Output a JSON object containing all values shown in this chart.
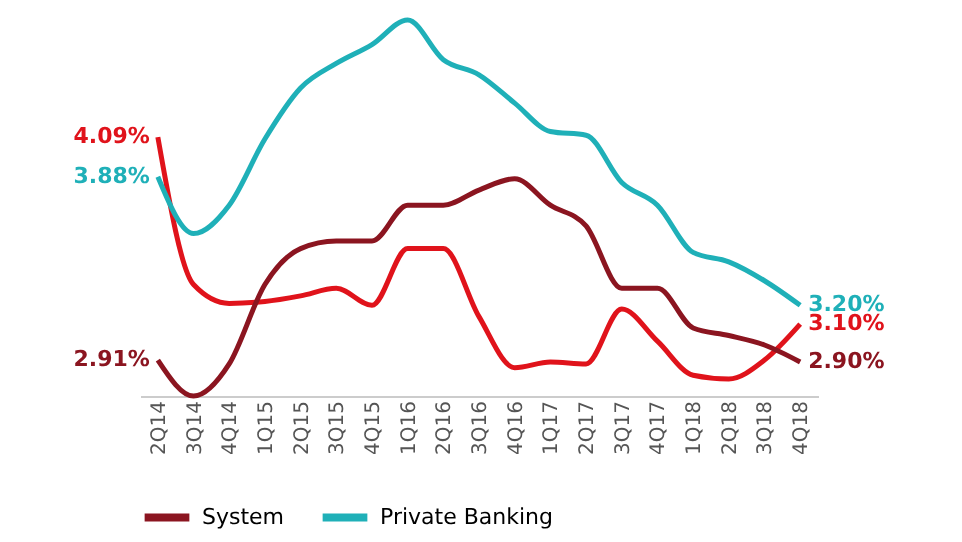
{
  "chart_data": {
    "type": "line",
    "categories": [
      "2Q14",
      "3Q14",
      "4Q14",
      "1Q15",
      "2Q15",
      "3Q15",
      "4Q15",
      "1Q16",
      "2Q16",
      "3Q16",
      "4Q16",
      "1Q17",
      "2Q17",
      "3Q17",
      "4Q17",
      "1Q18",
      "2Q18",
      "3Q18",
      "4Q18"
    ],
    "series": [
      {
        "color": "#e0131b",
        "values": [
          4.09,
          3.31,
          3.21,
          3.22,
          3.25,
          3.29,
          3.2,
          3.5,
          3.5,
          3.14,
          2.87,
          2.9,
          2.89,
          3.18,
          3.01,
          2.83,
          2.81,
          2.91,
          3.1
        ],
        "value_labels": [
          "4.09%",
          null,
          null,
          null,
          null,
          null,
          null,
          null,
          null,
          null,
          null,
          null,
          null,
          null,
          null,
          null,
          null,
          null,
          "3.10%"
        ]
      },
      {
        "name": "System",
        "color": "#8b1520",
        "values": [
          2.91,
          2.72,
          2.89,
          3.31,
          3.5,
          3.54,
          3.54,
          3.73,
          3.73,
          3.81,
          3.87,
          3.73,
          3.62,
          3.29,
          3.29,
          3.08,
          3.04,
          2.99,
          2.9
        ],
        "value_labels": [
          "2.91%",
          null,
          null,
          null,
          null,
          null,
          null,
          null,
          null,
          null,
          null,
          null,
          null,
          null,
          null,
          null,
          null,
          null,
          "2.90%"
        ]
      },
      {
        "name": "Private Banking",
        "color": "#1fb0b8",
        "values": [
          3.88,
          3.58,
          3.73,
          4.08,
          4.35,
          4.48,
          4.58,
          4.71,
          4.5,
          4.42,
          4.27,
          4.12,
          4.1,
          3.85,
          3.73,
          3.48,
          3.43,
          3.33,
          3.2
        ],
        "value_labels": [
          "3.88%",
          null,
          null,
          null,
          null,
          null,
          null,
          null,
          null,
          null,
          null,
          null,
          null,
          null,
          null,
          null,
          null,
          null,
          "3.20%"
        ]
      }
    ],
    "legend": "bottom",
    "marker": "none",
    "line_style": "solid",
    "tick_labels": "x"
  }
}
